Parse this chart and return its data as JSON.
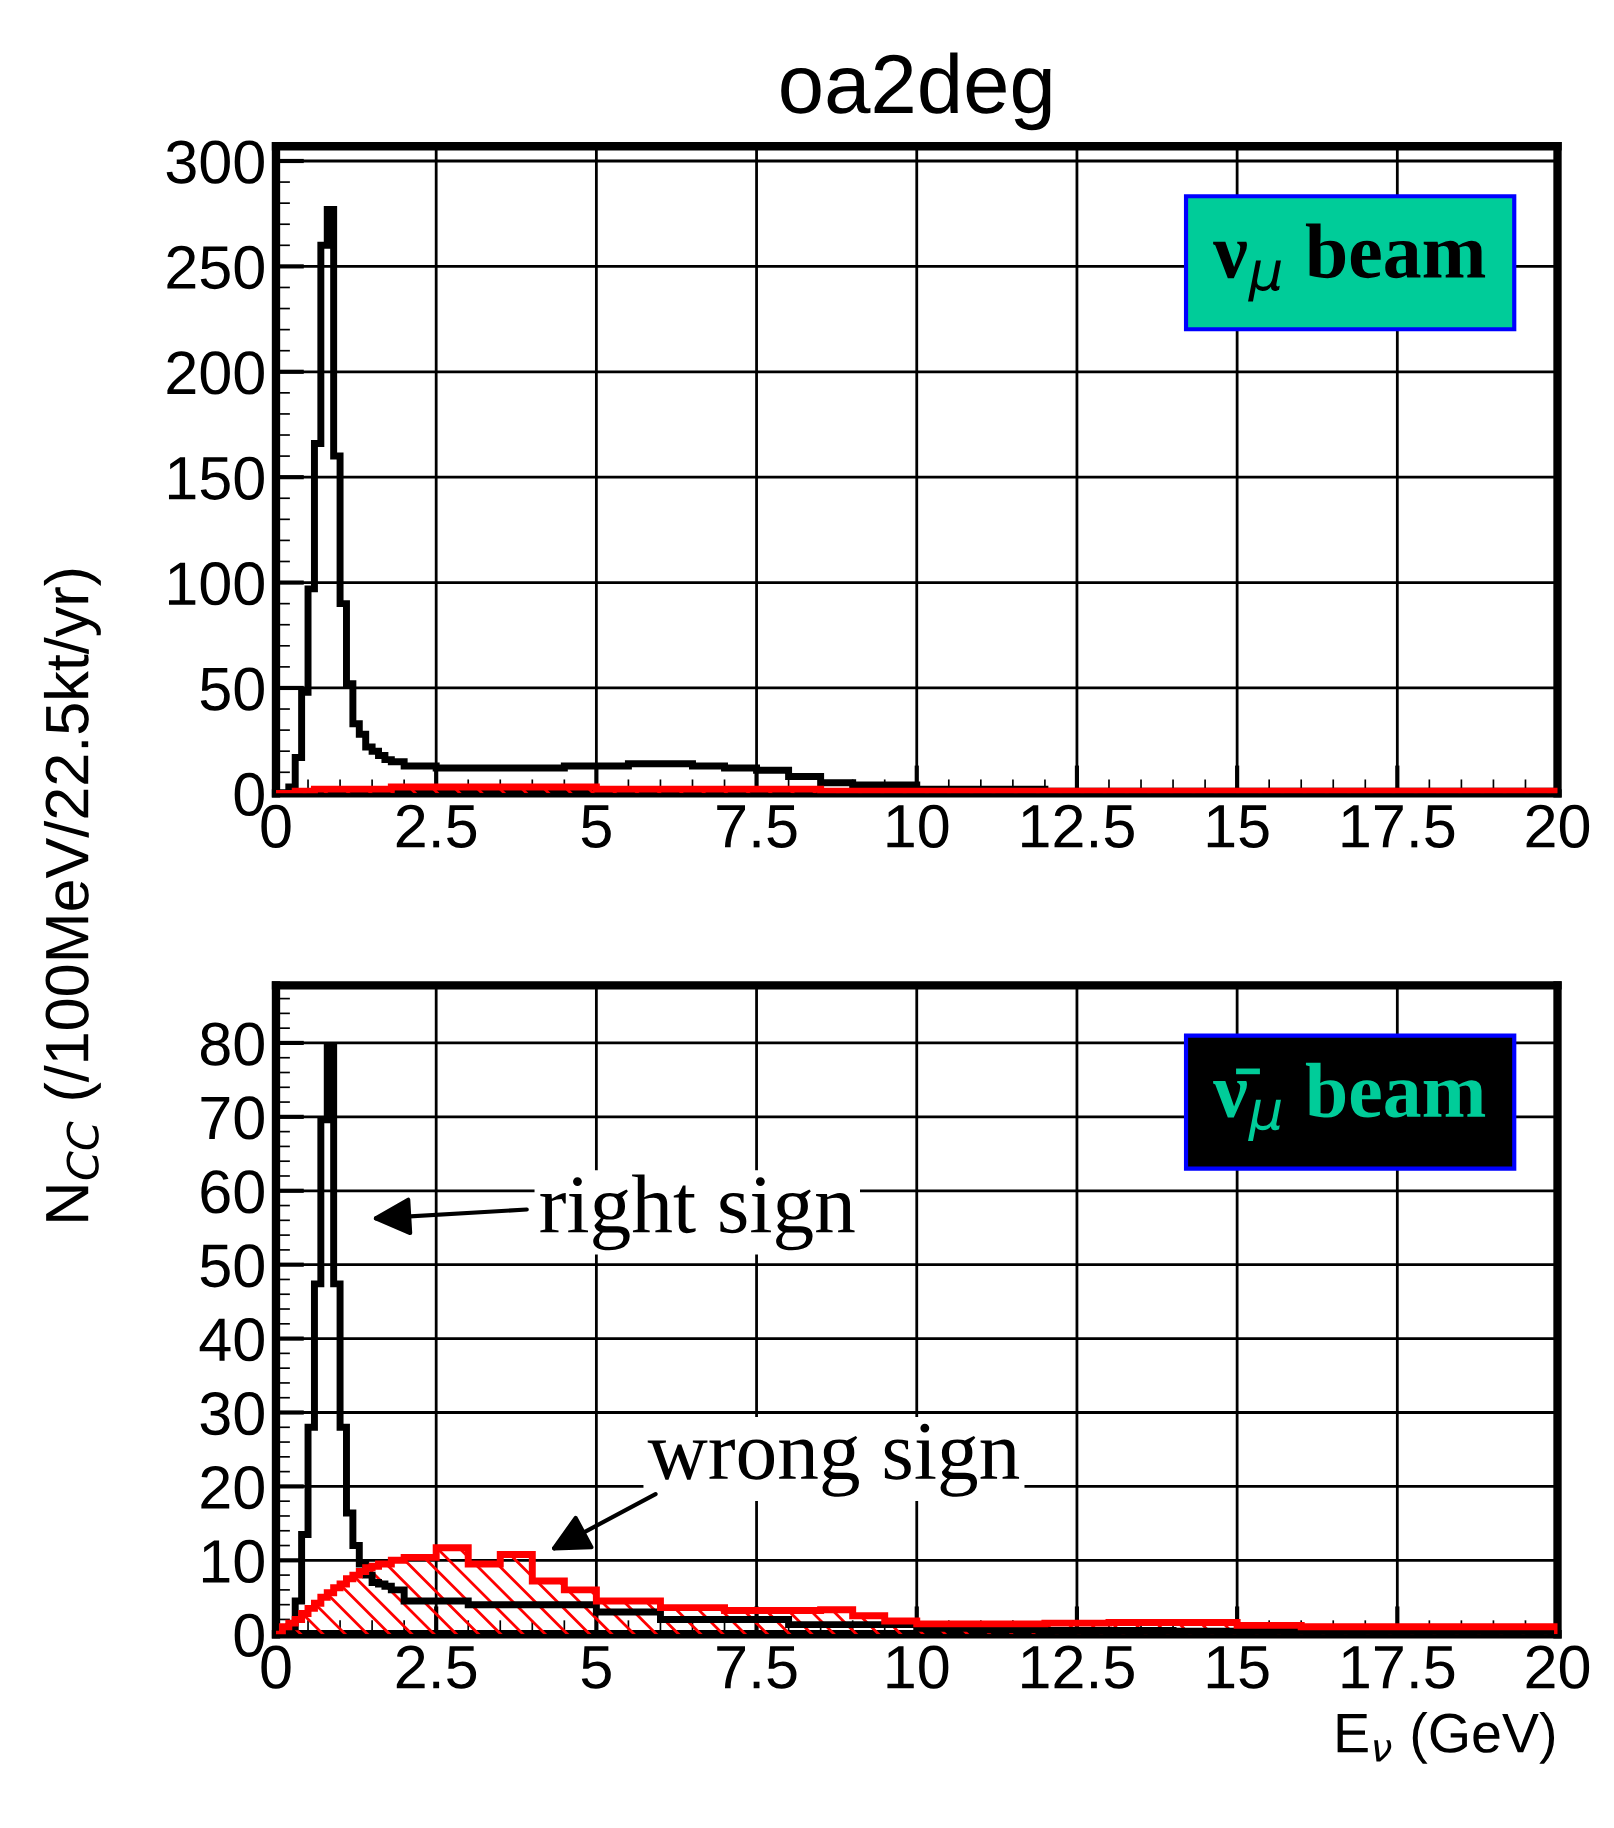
{
  "chart_data": [
    {
      "type": "histogram",
      "title": "oa2deg",
      "bins": [
        0,
        0.1,
        0.2,
        0.3,
        0.4,
        0.5,
        0.6,
        0.7,
        0.8,
        0.9,
        1.0,
        1.1,
        1.2,
        1.3,
        1.4,
        1.5,
        1.6,
        1.7,
        1.8,
        1.9,
        2.0,
        2.5,
        3.0,
        3.5,
        4.0,
        4.5,
        5.0,
        5.5,
        6.0,
        6.5,
        7.0,
        7.5,
        8.0,
        8.5,
        9.0,
        9.5,
        10,
        11,
        12,
        13,
        14,
        15,
        16,
        17,
        18,
        19,
        20
      ],
      "series": [
        {
          "color": "#000000",
          "values": [
            0,
            0,
            3,
            17,
            48,
            97,
            166,
            260,
            277,
            160,
            90,
            52,
            33,
            28,
            22,
            20,
            18,
            16,
            15,
            15,
            13,
            12,
            12,
            12,
            12,
            13,
            13,
            14,
            14,
            13,
            12,
            11,
            8,
            5,
            4,
            4,
            2,
            2,
            1,
            1,
            1,
            1,
            1,
            1,
            1,
            1
          ]
        },
        {
          "color": "#ff0000",
          "values": [
            0,
            0,
            0,
            1,
            1,
            1,
            2,
            2,
            2,
            2,
            2,
            2,
            2,
            2,
            2,
            2,
            2,
            2,
            3,
            3,
            3,
            3,
            3,
            3,
            3,
            3,
            2,
            2,
            2,
            2,
            2,
            2,
            2,
            1,
            1,
            1,
            1,
            1,
            1,
            1,
            1,
            1,
            1,
            1,
            1,
            1
          ]
        }
      ],
      "xlim": [
        0,
        20
      ],
      "xticks": [
        0,
        2.5,
        5,
        7.5,
        10,
        12.5,
        15,
        17.5,
        20
      ],
      "ylim": [
        0,
        307
      ],
      "yticks": [
        0,
        50,
        100,
        150,
        200,
        250,
        300
      ],
      "grid": true,
      "annotations": [
        "ν$_{μ}$ beam"
      ]
    },
    {
      "type": "histogram",
      "xlabel": "E$_{ν}$ (GeV)",
      "ylabel": "N$_{CC}$ (/100MeV/22.5kt/yr)",
      "bins": [
        0,
        0.1,
        0.2,
        0.3,
        0.4,
        0.5,
        0.6,
        0.7,
        0.8,
        0.9,
        1.0,
        1.1,
        1.2,
        1.3,
        1.4,
        1.5,
        1.6,
        1.7,
        1.8,
        1.9,
        2.0,
        2.5,
        3.0,
        3.5,
        4.0,
        4.5,
        5.0,
        5.5,
        6.0,
        6.5,
        7.0,
        7.5,
        8.0,
        8.5,
        9.0,
        9.5,
        10,
        11,
        12,
        13,
        14,
        15,
        16,
        17,
        18,
        19,
        20
      ],
      "series": [
        {
          "color": "#000000",
          "values": [
            0,
            0,
            1,
            4.5,
            13.5,
            28,
            47.4,
            69.6,
            79.5,
            47.4,
            28,
            16.4,
            12,
            9.5,
            8,
            7,
            6.8,
            6.5,
            6,
            6,
            4.5,
            4.5,
            4,
            4,
            4,
            4,
            3,
            3,
            2,
            2,
            2,
            2,
            1.3,
            1.3,
            1.3,
            1.3,
            0.8,
            0.6,
            0.5,
            0.5,
            0.4,
            0.4,
            0.3,
            0.3,
            0.3,
            0.3
          ]
        },
        {
          "color": "#ff0000",
          "values": [
            0,
            1,
            1.5,
            2,
            2.8,
            3.5,
            4.2,
            5,
            5.6,
            6.3,
            6.8,
            7.5,
            8,
            8.5,
            9,
            9.2,
            9.5,
            9.5,
            10,
            10,
            10.4,
            11.7,
            9.5,
            10.8,
            7.2,
            6,
            4.5,
            4.5,
            3.6,
            3.6,
            3.2,
            3.2,
            3.2,
            3.3,
            2.5,
            1.8,
            1.4,
            1.4,
            1.5,
            1.6,
            1.6,
            1.2,
            1.0,
            1.0,
            1.0,
            1.0
          ]
        }
      ],
      "xlim": [
        0,
        20
      ],
      "xticks": [
        0,
        2.5,
        5,
        7.5,
        10,
        12.5,
        15,
        17.5,
        20
      ],
      "ylim": [
        0,
        87.8
      ],
      "yticks": [
        0,
        10,
        20,
        30,
        40,
        50,
        60,
        70,
        80
      ],
      "grid": true,
      "annotations": [
        "ν̄$_{μ}$ beam",
        "right sign",
        "wrong sign"
      ]
    }
  ]
}
